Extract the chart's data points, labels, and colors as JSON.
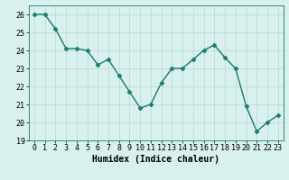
{
  "x": [
    0,
    1,
    2,
    3,
    4,
    5,
    6,
    7,
    8,
    9,
    10,
    11,
    12,
    13,
    14,
    15,
    16,
    17,
    18,
    19,
    20,
    21,
    22,
    23
  ],
  "y": [
    26.0,
    26.0,
    25.2,
    24.1,
    24.1,
    24.0,
    23.2,
    23.5,
    22.6,
    21.7,
    20.8,
    21.0,
    22.2,
    23.0,
    23.0,
    23.5,
    24.0,
    24.3,
    23.6,
    23.0,
    20.9,
    19.5,
    20.0,
    20.4
  ],
  "line_color": "#1a7a6e",
  "marker": "D",
  "marker_size": 2.5,
  "bg_color": "#d8f0ee",
  "grid_color": "#c0dcd8",
  "xlabel": "Humidex (Indice chaleur)",
  "ylabel": "",
  "xlim": [
    -0.5,
    23.5
  ],
  "ylim": [
    19,
    26.5
  ],
  "yticks": [
    19,
    20,
    21,
    22,
    23,
    24,
    25,
    26
  ],
  "xticks": [
    0,
    1,
    2,
    3,
    4,
    5,
    6,
    7,
    8,
    9,
    10,
    11,
    12,
    13,
    14,
    15,
    16,
    17,
    18,
    19,
    20,
    21,
    22,
    23
  ],
  "xlabel_fontsize": 7,
  "tick_fontsize": 6
}
